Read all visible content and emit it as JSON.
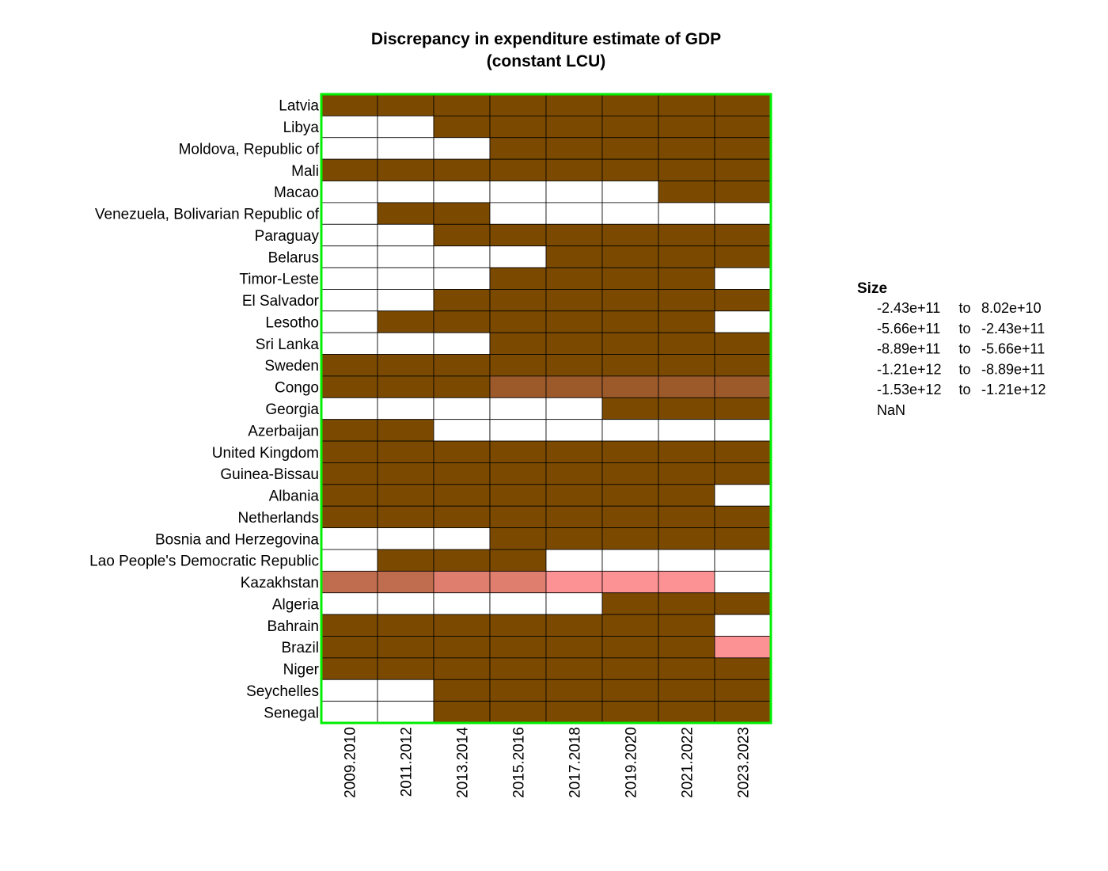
{
  "chart_data": {
    "type": "heatmap",
    "title": "Discrepancy in expenditure estimate of GDP",
    "subtitle": "(constant LCU)",
    "columns": [
      "2009.2010",
      "2011.2012",
      "2013.2014",
      "2015.2016",
      "2017.2018",
      "2019.2020",
      "2021.2022",
      "2023.2023"
    ],
    "rows": [
      "Latvia",
      "Libya",
      "Moldova, Republic of",
      "Mali",
      "Macao",
      "Venezuela, Bolivarian Republic of",
      "Paraguay",
      "Belarus",
      "Timor-Leste",
      "El Salvador",
      "Lesotho",
      "Sri Lanka",
      "Sweden",
      "Congo",
      "Georgia",
      "Azerbaijan",
      "United Kingdom",
      "Guinea-Bissau",
      "Albania",
      "Netherlands",
      "Bosnia and Herzegovina",
      "Lao People's Democratic Republic",
      "Kazakhstan",
      "Algeria",
      "Bahrain",
      "Brazil",
      "Niger",
      "Seychelles",
      "Senegal"
    ],
    "legend": {
      "title": "Size",
      "bins": [
        {
          "from": "-2.43e+11",
          "sep": "to",
          "to": "8.02e+10",
          "color": "#7b4a00"
        },
        {
          "from": "-5.66e+11",
          "sep": "to",
          "to": "-2.43e+11",
          "color": "#9c5a2b"
        },
        {
          "from": "-8.89e+11",
          "sep": "to",
          "to": "-5.66e+11",
          "color": "#c06c4e"
        },
        {
          "from": "-1.21e+12",
          "sep": "to",
          "to": "-8.89e+11",
          "color": "#df7e6f"
        },
        {
          "from": "-1.53e+12",
          "sep": "to",
          "to": "-1.21e+12",
          "color": "#fd9294"
        },
        {
          "from": "NaN",
          "sep": "",
          "to": "",
          "color": "#ffffff"
        }
      ]
    },
    "cells": [
      [
        0,
        0,
        0,
        0,
        0,
        0,
        0,
        0
      ],
      [
        5,
        5,
        0,
        0,
        0,
        0,
        0,
        0
      ],
      [
        5,
        5,
        5,
        0,
        0,
        0,
        0,
        0
      ],
      [
        0,
        0,
        0,
        0,
        0,
        0,
        0,
        0
      ],
      [
        5,
        5,
        5,
        5,
        5,
        5,
        0,
        0
      ],
      [
        5,
        0,
        0,
        5,
        5,
        5,
        5,
        5
      ],
      [
        5,
        5,
        0,
        0,
        0,
        0,
        0,
        0
      ],
      [
        5,
        5,
        5,
        5,
        0,
        0,
        0,
        0
      ],
      [
        5,
        5,
        5,
        0,
        0,
        0,
        0,
        5
      ],
      [
        5,
        5,
        0,
        0,
        0,
        0,
        0,
        0
      ],
      [
        5,
        0,
        0,
        0,
        0,
        0,
        0,
        5
      ],
      [
        5,
        5,
        5,
        0,
        0,
        0,
        0,
        0
      ],
      [
        0,
        0,
        0,
        0,
        0,
        0,
        0,
        0
      ],
      [
        0,
        0,
        0,
        1,
        1,
        1,
        1,
        1
      ],
      [
        5,
        5,
        5,
        5,
        5,
        0,
        0,
        0
      ],
      [
        0,
        0,
        5,
        5,
        5,
        5,
        5,
        5
      ],
      [
        0,
        0,
        0,
        0,
        0,
        0,
        0,
        0
      ],
      [
        0,
        0,
        0,
        0,
        0,
        0,
        0,
        0
      ],
      [
        0,
        0,
        0,
        0,
        0,
        0,
        0,
        5
      ],
      [
        0,
        0,
        0,
        0,
        0,
        0,
        0,
        0
      ],
      [
        5,
        5,
        5,
        0,
        0,
        0,
        0,
        0
      ],
      [
        5,
        0,
        0,
        0,
        5,
        5,
        5,
        5
      ],
      [
        2,
        2,
        3,
        3,
        4,
        4,
        4,
        5
      ],
      [
        5,
        5,
        5,
        5,
        5,
        0,
        0,
        0
      ],
      [
        0,
        0,
        0,
        0,
        0,
        0,
        0,
        5
      ],
      [
        0,
        0,
        0,
        0,
        0,
        0,
        0,
        4
      ],
      [
        0,
        0,
        0,
        0,
        0,
        0,
        0,
        0
      ],
      [
        5,
        5,
        0,
        0,
        0,
        0,
        0,
        0
      ],
      [
        5,
        5,
        0,
        0,
        0,
        0,
        0,
        0
      ]
    ],
    "frame_color": "#00ee00"
  }
}
